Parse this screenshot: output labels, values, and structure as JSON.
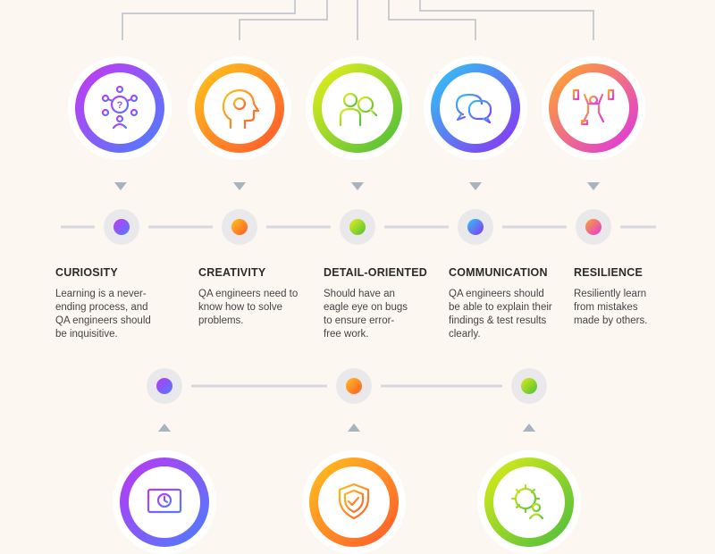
{
  "traits": [
    {
      "title": "CURIOSITY",
      "description": "Learning is a never-ending process, and QA engineers should be inquisitive.",
      "icon": "question-network-icon",
      "gradient": [
        "#b23cf0",
        "#4f7cff"
      ]
    },
    {
      "title": "CREATIVITY",
      "description": "QA engineers need to know how to solve problems.",
      "icon": "head-lightbulb-icon",
      "gradient": [
        "#ffb41e",
        "#ff6a2b"
      ]
    },
    {
      "title": "DETAIL-ORIENTED",
      "description": "Should have an eagle eye on bugs to ensure error-free work.",
      "icon": "magnifier-person-icon",
      "gradient": [
        "#d9e91a",
        "#5fc13a"
      ]
    },
    {
      "title": "COMMUNICATION",
      "description": "QA engineers should be able to explain their findings & test results clearly.",
      "icon": "speech-bubbles-icon",
      "gradient": [
        "#36b7f5",
        "#7a3cf5"
      ]
    },
    {
      "title": "RESILIENCE",
      "description": "Resiliently learn from mistakes made by others.",
      "icon": "weightlifter-icon",
      "gradient": [
        "#ff9a2b",
        "#e23ad8"
      ]
    }
  ],
  "bottom_icons": [
    {
      "icon": "monitor-clock-icon",
      "gradient": [
        "#b23cf0",
        "#4f7cff"
      ]
    },
    {
      "icon": "shield-check-icon",
      "gradient": [
        "#ffb41e",
        "#ff6a2b"
      ]
    },
    {
      "icon": "gear-person-icon",
      "gradient": [
        "#d9e91a",
        "#5fc13a"
      ]
    }
  ],
  "colors": {
    "background": "#fcf7f1",
    "connector": "#c9ccd3",
    "arrow": "#a9b2bf"
  }
}
